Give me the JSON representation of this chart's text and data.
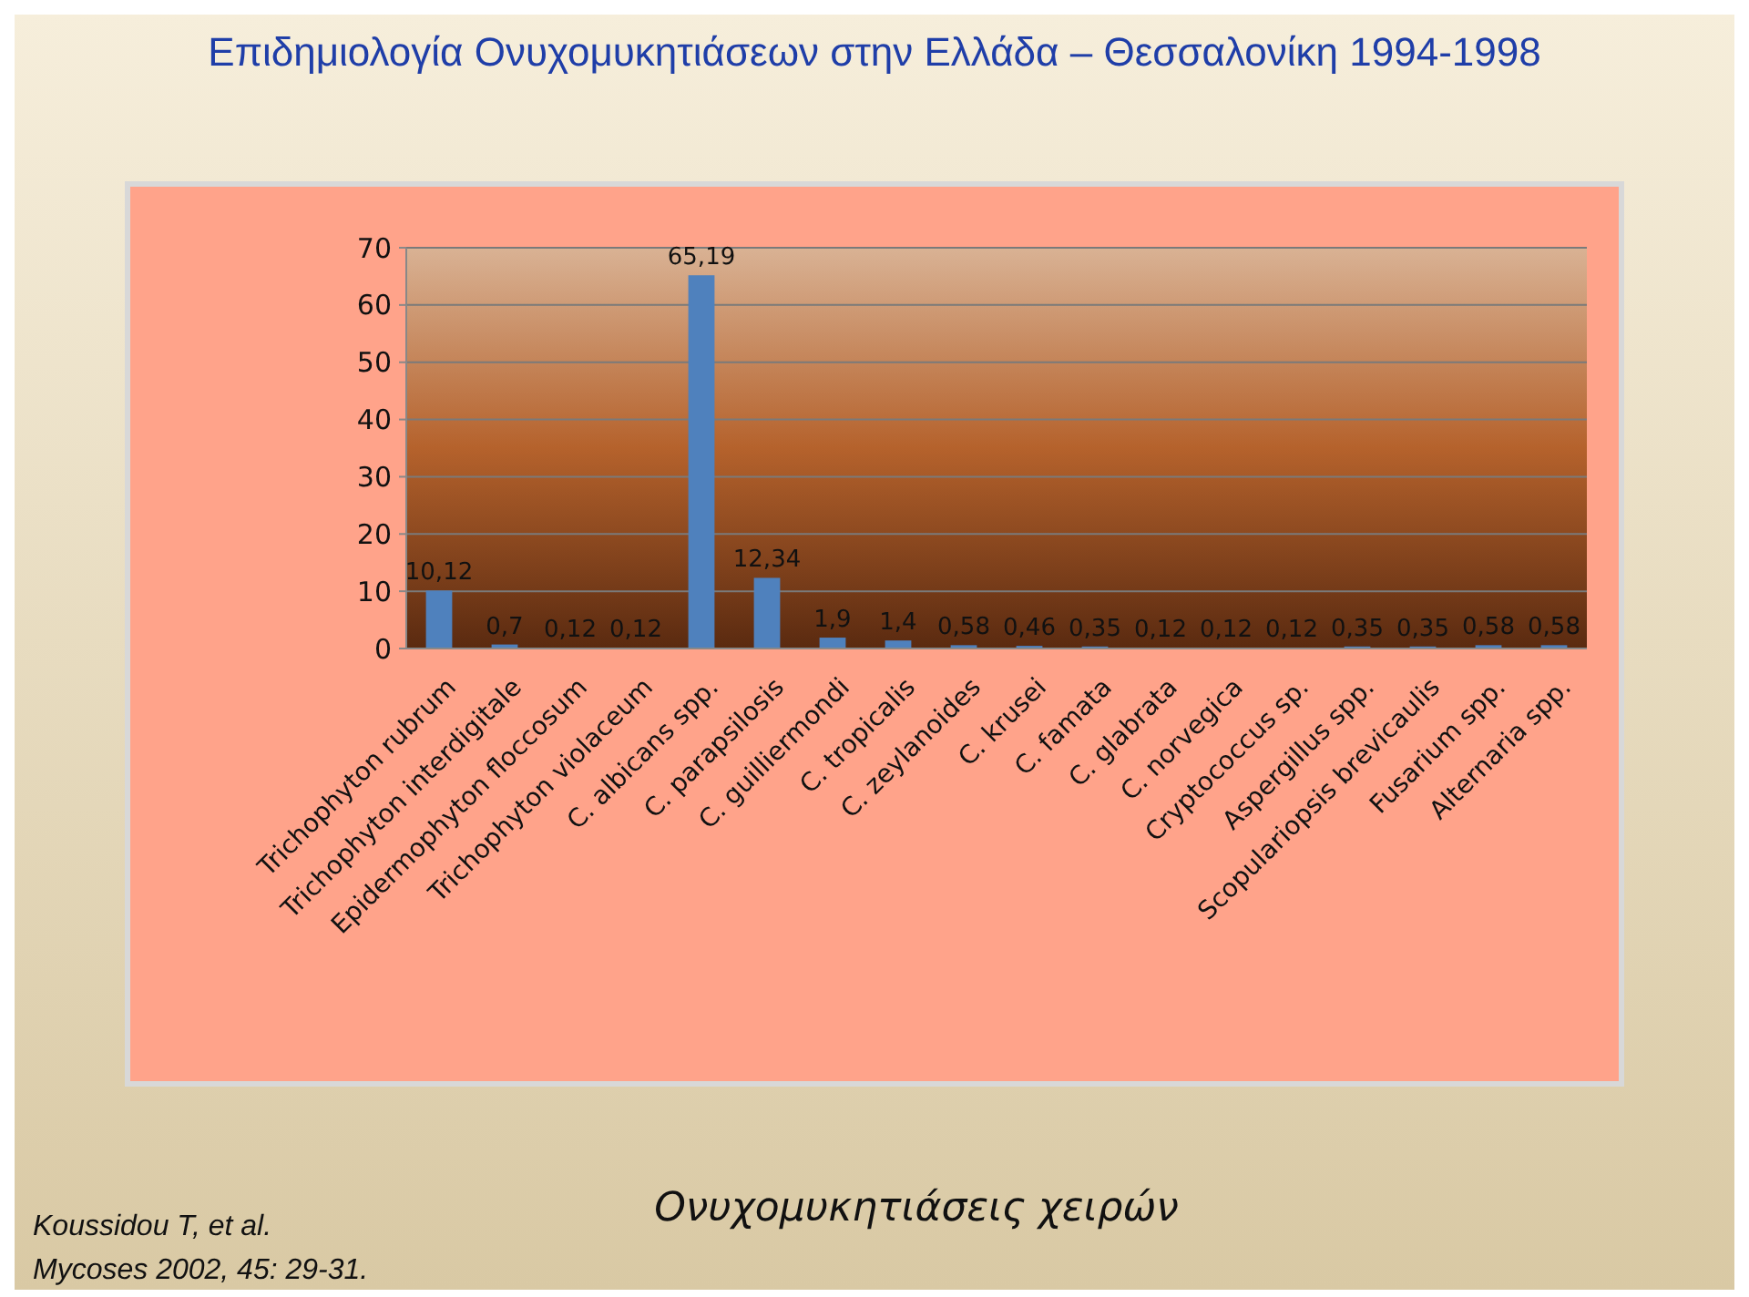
{
  "chart_data": {
    "type": "bar",
    "title": "Επιδημιολογία Ονυχομυκητιάσεων στην Ελλάδα – Θεσσαλονίκη 1994-1998",
    "subtitle": "Ονυχομυκητιάσεις χειρών",
    "annotations": [
      "Koussidou T, et al.",
      "Mycoses 2002, 45: 29-31."
    ],
    "categories": [
      "Trichophyton rubrum",
      "Trichophyton interdigitale",
      "Epidermophyton floccosum",
      "Trichophyton violaceum",
      "C. albicans spp.",
      "C. parapsilosis",
      "C. guilliermondi",
      "C. tropicalis",
      "C. zeylanoides",
      "C. krusei",
      "C. famata",
      "C. glabrata",
      "C. norvegica",
      "Cryptococcus sp.",
      "Aspergillus spp.",
      "Scopulariopsis brevicaulis",
      "Fusarium spp.",
      "Alternaria spp."
    ],
    "values": [
      10.12,
      0.7,
      0.12,
      0.12,
      65.19,
      12.34,
      1.9,
      1.4,
      0.58,
      0.46,
      0.35,
      0.12,
      0.12,
      0.12,
      0.35,
      0.35,
      0.58,
      0.58
    ],
    "value_labels": [
      "10,12",
      "0,7",
      "0,12",
      "0,12",
      "65,19",
      "12,34",
      "1,9",
      "1,4",
      "0,58",
      "0,46",
      "0,35",
      "0,12",
      "0,12",
      "0,12",
      "0,35",
      "0,35",
      "0,58",
      "0,58"
    ],
    "color": "#4f81bd",
    "ylim": [
      0,
      70
    ],
    "yticks": [
      0,
      10,
      20,
      30,
      40,
      50,
      60,
      70
    ],
    "grid": "y"
  }
}
